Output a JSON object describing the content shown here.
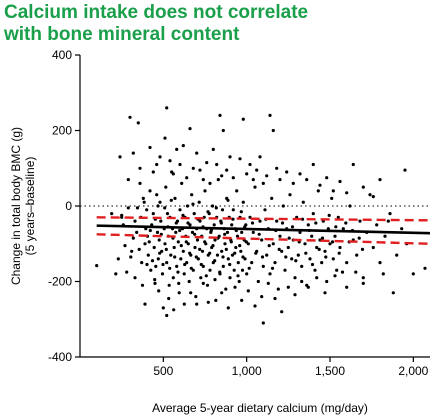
{
  "chart_data": {
    "type": "scatter",
    "title_lines": [
      "Calcium intake does not correlate",
      "with bone mineral content"
    ],
    "xlabel": "Average 5-year dietary calcium (mg/day)",
    "ylabel_lines": [
      "Change in total body BMC (g)",
      "(5 years–baseline)"
    ],
    "xlim": [
      0,
      2100
    ],
    "ylim": [
      -400,
      400
    ],
    "x_ticks": [
      500,
      1000,
      1500,
      2000
    ],
    "x_tick_labels": [
      "500",
      "1,000",
      "1,500",
      "2,000"
    ],
    "y_ticks": [
      -400,
      -200,
      0,
      200,
      400
    ],
    "y_tick_labels": [
      "-400",
      "-200",
      "0",
      "200",
      "400"
    ],
    "reference_line": {
      "y": 0,
      "style": "dotted"
    },
    "regression_line": {
      "x": [
        100,
        2100
      ],
      "y": [
        -52,
        -72
      ],
      "color": "#000000"
    },
    "confidence_band": {
      "x": [
        100,
        2100
      ],
      "lower": [
        -75,
        -100
      ],
      "upper": [
        -30,
        -38
      ],
      "color": "#e02020"
    },
    "points": [
      [
        100,
        -158
      ],
      [
        190,
        -20
      ],
      [
        215,
        -180
      ],
      [
        230,
        -140
      ],
      [
        250,
        -25
      ],
      [
        260,
        -50
      ],
      [
        280,
        -175
      ],
      [
        290,
        -5
      ],
      [
        300,
        235
      ],
      [
        310,
        -120
      ],
      [
        320,
        -85
      ],
      [
        330,
        -190
      ],
      [
        340,
        -70
      ],
      [
        350,
        220
      ],
      [
        360,
        60
      ],
      [
        365,
        -30
      ],
      [
        370,
        -150
      ],
      [
        380,
        20
      ],
      [
        390,
        -100
      ],
      [
        395,
        -60
      ],
      [
        400,
        -10
      ],
      [
        405,
        -80
      ],
      [
        410,
        -130
      ],
      [
        420,
        40
      ],
      [
        425,
        -170
      ],
      [
        430,
        -50
      ],
      [
        440,
        -20
      ],
      [
        445,
        -110
      ],
      [
        450,
        -205
      ],
      [
        455,
        -160
      ],
      [
        460,
        30
      ],
      [
        465,
        -70
      ],
      [
        470,
        -140
      ],
      [
        475,
        -90
      ],
      [
        480,
        10
      ],
      [
        485,
        -40
      ],
      [
        490,
        -120
      ],
      [
        495,
        -180
      ],
      [
        500,
        -270
      ],
      [
        505,
        -60
      ],
      [
        510,
        -100
      ],
      [
        515,
        50
      ],
      [
        520,
        -150
      ],
      [
        525,
        -20
      ],
      [
        530,
        -80
      ],
      [
        535,
        -210
      ],
      [
        540,
        -30
      ],
      [
        545,
        -130
      ],
      [
        550,
        90
      ],
      [
        555,
        -60
      ],
      [
        560,
        -190
      ],
      [
        565,
        -110
      ],
      [
        570,
        20
      ],
      [
        575,
        -70
      ],
      [
        580,
        -160
      ],
      [
        585,
        -40
      ],
      [
        590,
        -95
      ],
      [
        595,
        -230
      ],
      [
        600,
        -10
      ],
      [
        605,
        -140
      ],
      [
        610,
        60
      ],
      [
        615,
        -60
      ],
      [
        620,
        -120
      ],
      [
        625,
        -180
      ],
      [
        630,
        -30
      ],
      [
        635,
        -80
      ],
      [
        640,
        -150
      ],
      [
        645,
        0
      ],
      [
        650,
        -100
      ],
      [
        655,
        -200
      ],
      [
        660,
        -50
      ],
      [
        665,
        -130
      ],
      [
        670,
        30
      ],
      [
        675,
        -70
      ],
      [
        680,
        -170
      ],
      [
        685,
        -20
      ],
      [
        690,
        -110
      ],
      [
        695,
        -240
      ],
      [
        700,
        -60
      ],
      [
        705,
        -90
      ],
      [
        710,
        -140
      ],
      [
        715,
        10
      ],
      [
        720,
        -40
      ],
      [
        725,
        -190
      ],
      [
        730,
        -80
      ],
      [
        735,
        -120
      ],
      [
        740,
        -160
      ],
      [
        745,
        -30
      ],
      [
        750,
        40
      ],
      [
        755,
        -100
      ],
      [
        760,
        -60
      ],
      [
        765,
        -210
      ],
      [
        770,
        -130
      ],
      [
        775,
        -20
      ],
      [
        780,
        -170
      ],
      [
        785,
        -70
      ],
      [
        790,
        -110
      ],
      [
        795,
        0
      ],
      [
        800,
        -150
      ],
      [
        805,
        -50
      ],
      [
        810,
        -90
      ],
      [
        815,
        -250
      ],
      [
        820,
        -30
      ],
      [
        825,
        -130
      ],
      [
        830,
        70
      ],
      [
        835,
        -80
      ],
      [
        840,
        -180
      ],
      [
        845,
        -40
      ],
      [
        850,
        -120
      ],
      [
        855,
        -10
      ],
      [
        860,
        -160
      ],
      [
        865,
        -60
      ],
      [
        870,
        -100
      ],
      [
        875,
        -220
      ],
      [
        880,
        20
      ],
      [
        885,
        -70
      ],
      [
        890,
        -140
      ],
      [
        895,
        -30
      ],
      [
        900,
        -190
      ],
      [
        905,
        -90
      ],
      [
        910,
        -50
      ],
      [
        915,
        -130
      ],
      [
        920,
        -10
      ],
      [
        925,
        -170
      ],
      [
        930,
        -60
      ],
      [
        935,
        -110
      ],
      [
        940,
        40
      ],
      [
        945,
        -80
      ],
      [
        950,
        -150
      ],
      [
        955,
        -200
      ],
      [
        960,
        -30
      ],
      [
        965,
        -120
      ],
      [
        970,
        -70
      ],
      [
        975,
        -170
      ],
      [
        980,
        10
      ],
      [
        985,
        -90
      ],
      [
        990,
        -140
      ],
      [
        995,
        -50
      ],
      [
        1000,
        -180
      ],
      [
        1010,
        -100
      ],
      [
        1020,
        -30
      ],
      [
        1030,
        -150
      ],
      [
        1040,
        -70
      ],
      [
        1050,
        50
      ],
      [
        1060,
        -120
      ],
      [
        1070,
        -200
      ],
      [
        1080,
        -40
      ],
      [
        1090,
        -90
      ],
      [
        1100,
        -160
      ],
      [
        1110,
        -10
      ],
      [
        1120,
        -130
      ],
      [
        1130,
        -60
      ],
      [
        1140,
        -180
      ],
      [
        1150,
        20
      ],
      [
        1160,
        -100
      ],
      [
        1170,
        -150
      ],
      [
        1180,
        -40
      ],
      [
        1190,
        -220
      ],
      [
        1200,
        -80
      ],
      [
        1210,
        -120
      ],
      [
        1220,
        0
      ],
      [
        1230,
        -170
      ],
      [
        1240,
        -60
      ],
      [
        1250,
        -110
      ],
      [
        1260,
        30
      ],
      [
        1270,
        -140
      ],
      [
        1280,
        -90
      ],
      [
        1290,
        -190
      ],
      [
        1300,
        -30
      ],
      [
        1310,
        -130
      ],
      [
        1320,
        -70
      ],
      [
        1330,
        -160
      ],
      [
        1340,
        10
      ],
      [
        1350,
        -100
      ],
      [
        1360,
        -210
      ],
      [
        1370,
        -50
      ],
      [
        1380,
        -140
      ],
      [
        1390,
        -80
      ],
      [
        1400,
        -20
      ],
      [
        1410,
        -170
      ],
      [
        1420,
        -110
      ],
      [
        1430,
        40
      ],
      [
        1440,
        -90
      ],
      [
        1450,
        -150
      ],
      [
        1460,
        -40
      ],
      [
        1470,
        -120
      ],
      [
        1480,
        -200
      ],
      [
        1490,
        -60
      ],
      [
        1500,
        -100
      ],
      [
        1510,
        20
      ],
      [
        1520,
        -140
      ],
      [
        1530,
        -80
      ],
      [
        1540,
        -170
      ],
      [
        1550,
        -30
      ],
      [
        1560,
        -110
      ],
      [
        1580,
        -60
      ],
      [
        1600,
        -150
      ],
      [
        1620,
        0
      ],
      [
        1640,
        -90
      ],
      [
        1660,
        -130
      ],
      [
        1680,
        -40
      ],
      [
        1700,
        -190
      ],
      [
        1720,
        -70
      ],
      [
        1740,
        30
      ],
      [
        1760,
        -110
      ],
      [
        1780,
        -50
      ],
      [
        1800,
        -150
      ],
      [
        1830,
        -80
      ],
      [
        1860,
        -20
      ],
      [
        1900,
        -130
      ],
      [
        1930,
        -60
      ],
      [
        1960,
        -100
      ],
      [
        2000,
        -180
      ],
      [
        2070,
        -165
      ],
      [
        330,
        -40
      ],
      [
        355,
        -115
      ],
      [
        385,
        10
      ],
      [
        415,
        -95
      ],
      [
        435,
        -145
      ],
      [
        452,
        -35
      ],
      [
        468,
        0
      ],
      [
        478,
        -125
      ],
      [
        488,
        -75
      ],
      [
        498,
        -155
      ],
      [
        508,
        -5
      ],
      [
        518,
        -115
      ],
      [
        528,
        -55
      ],
      [
        538,
        -165
      ],
      [
        548,
        15
      ],
      [
        558,
        -85
      ],
      [
        568,
        -135
      ],
      [
        578,
        -45
      ],
      [
        588,
        -175
      ],
      [
        598,
        -65
      ],
      [
        608,
        -105
      ],
      [
        618,
        -25
      ],
      [
        628,
        -155
      ],
      [
        638,
        -95
      ],
      [
        648,
        -45
      ],
      [
        658,
        -125
      ],
      [
        668,
        -165
      ],
      [
        678,
        5
      ],
      [
        688,
        -75
      ],
      [
        698,
        -135
      ],
      [
        708,
        -35
      ],
      [
        718,
        -115
      ],
      [
        728,
        -155
      ],
      [
        738,
        -55
      ],
      [
        748,
        -95
      ],
      [
        758,
        -185
      ],
      [
        768,
        -15
      ],
      [
        778,
        -125
      ],
      [
        788,
        -65
      ],
      [
        798,
        -105
      ],
      [
        808,
        -145
      ],
      [
        818,
        -5
      ],
      [
        828,
        -85
      ],
      [
        838,
        -175
      ],
      [
        848,
        -45
      ],
      [
        858,
        -135
      ],
      [
        868,
        -75
      ],
      [
        878,
        -115
      ],
      [
        888,
        15
      ],
      [
        898,
        -155
      ],
      [
        908,
        -95
      ],
      [
        918,
        -35
      ],
      [
        928,
        -125
      ],
      [
        938,
        -65
      ],
      [
        948,
        -185
      ],
      [
        958,
        -105
      ],
      [
        968,
        -15
      ],
      [
        978,
        -135
      ],
      [
        988,
        -55
      ],
      [
        998,
        -95
      ],
      [
        1015,
        -165
      ],
      [
        1035,
        -45
      ],
      [
        1055,
        -125
      ],
      [
        1075,
        -75
      ],
      [
        1095,
        -135
      ],
      [
        1115,
        -35
      ],
      [
        1135,
        -105
      ],
      [
        1155,
        -165
      ],
      [
        1175,
        -65
      ],
      [
        1195,
        -115
      ],
      [
        1215,
        -45
      ],
      [
        1235,
        -135
      ],
      [
        1255,
        -85
      ],
      [
        1275,
        -55
      ],
      [
        1295,
        -145
      ],
      [
        1315,
        -95
      ],
      [
        1335,
        -35
      ],
      [
        1355,
        -125
      ],
      [
        1375,
        -65
      ],
      [
        1395,
        -155
      ],
      [
        1415,
        -45
      ],
      [
        1435,
        -115
      ],
      [
        1455,
        -85
      ],
      [
        1475,
        -135
      ],
      [
        1495,
        -25
      ],
      [
        1515,
        -95
      ],
      [
        1535,
        -55
      ],
      [
        1555,
        -125
      ],
      [
        1575,
        -175
      ],
      [
        1595,
        -45
      ],
      [
        1615,
        -95
      ],
      [
        1635,
        -65
      ],
      [
        1655,
        -175
      ],
      [
        1675,
        -85
      ],
      [
        1695,
        -115
      ],
      [
        240,
        130
      ],
      [
        290,
        70
      ],
      [
        320,
        140
      ],
      [
        360,
        100
      ],
      [
        390,
        -260
      ],
      [
        420,
        155
      ],
      [
        440,
        90
      ],
      [
        460,
        110
      ],
      [
        480,
        130
      ],
      [
        510,
        180
      ],
      [
        520,
        260
      ],
      [
        540,
        120
      ],
      [
        560,
        85
      ],
      [
        580,
        150
      ],
      [
        600,
        110
      ],
      [
        620,
        160
      ],
      [
        640,
        75
      ],
      [
        660,
        205
      ],
      [
        680,
        100
      ],
      [
        700,
        140
      ],
      [
        720,
        95
      ],
      [
        740,
        70
      ],
      [
        760,
        115
      ],
      [
        780,
        60
      ],
      [
        800,
        150
      ],
      [
        820,
        110
      ],
      [
        840,
        240
      ],
      [
        850,
        80
      ],
      [
        860,
        200
      ],
      [
        880,
        95
      ],
      [
        900,
        130
      ],
      [
        920,
        75
      ],
      [
        960,
        125
      ],
      [
        980,
        230
      ],
      [
        1000,
        85
      ],
      [
        1020,
        110
      ],
      [
        1040,
        70
      ],
      [
        1060,
        95
      ],
      [
        1080,
        130
      ],
      [
        1100,
        60
      ],
      [
        1120,
        80
      ],
      [
        1140,
        240
      ],
      [
        1160,
        200
      ],
      [
        1180,
        100
      ],
      [
        1200,
        70
      ],
      [
        1240,
        90
      ],
      [
        1280,
        60
      ],
      [
        1320,
        85
      ],
      [
        1360,
        70
      ],
      [
        1400,
        110
      ],
      [
        1440,
        55
      ],
      [
        1480,
        75
      ],
      [
        1520,
        40
      ],
      [
        1560,
        65
      ],
      [
        1600,
        35
      ],
      [
        1640,
        110
      ],
      [
        1700,
        50
      ],
      [
        1760,
        25
      ],
      [
        1800,
        70
      ],
      [
        1850,
        -40
      ],
      [
        1950,
        95
      ],
      [
        250,
        -30
      ],
      [
        270,
        -105
      ],
      [
        305,
        -135
      ],
      [
        345,
        -5
      ],
      [
        375,
        -210
      ],
      [
        402,
        -155
      ],
      [
        422,
        -65
      ],
      [
        448,
        -195
      ],
      [
        472,
        -225
      ],
      [
        520,
        -290
      ],
      [
        532,
        -245
      ],
      [
        562,
        -275
      ],
      [
        592,
        -205
      ],
      [
        626,
        -260
      ],
      [
        664,
        -230
      ],
      [
        700,
        -260
      ],
      [
        740,
        -205
      ],
      [
        770,
        -255
      ],
      [
        810,
        -195
      ],
      [
        850,
        -230
      ],
      [
        890,
        -270
      ],
      [
        930,
        -215
      ],
      [
        970,
        -250
      ],
      [
        1010,
        -225
      ],
      [
        1050,
        -265
      ],
      [
        1090,
        -240
      ],
      [
        1100,
        -310
      ],
      [
        1130,
        -205
      ],
      [
        1170,
        -245
      ],
      [
        1210,
        -280
      ],
      [
        1250,
        -215
      ],
      [
        1290,
        -235
      ],
      [
        1330,
        -200
      ],
      [
        1370,
        -215
      ],
      [
        1420,
        -190
      ],
      [
        1470,
        -230
      ],
      [
        1530,
        -185
      ],
      [
        1600,
        -215
      ],
      [
        1700,
        -205
      ],
      [
        1820,
        -180
      ],
      [
        1880,
        -230
      ]
    ]
  }
}
